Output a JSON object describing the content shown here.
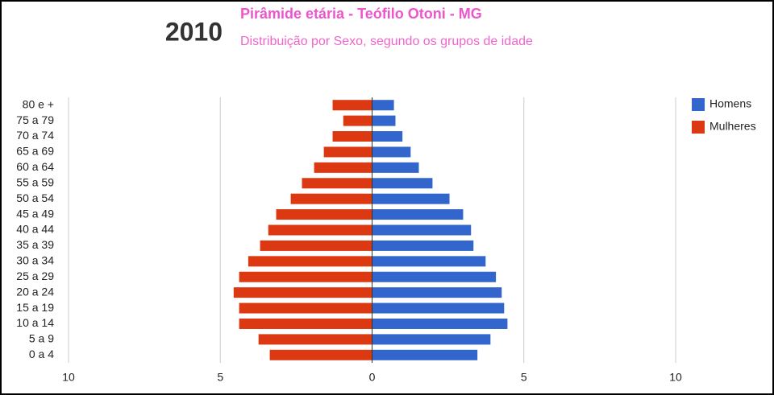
{
  "chart_data": {
    "type": "pyramid",
    "year": "2010",
    "title": "Pirâmide etária - Teófilo Otoni - MG",
    "subtitle": "Distribuição por Sexo, segundo os grupos de idade",
    "categories": [
      "80 e +",
      "75 a 79",
      "70 a 74",
      "65 a 69",
      "60 a 64",
      "55 a 59",
      "50 a 54",
      "45 a 49",
      "40 a 44",
      "35 a 39",
      "30 a 34",
      "25 a 29",
      "20 a 24",
      "15 a 19",
      "10 a 14",
      "5 a 9",
      "0 a 4"
    ],
    "series": [
      {
        "name": "Homens",
        "color": "#3366cc",
        "values": [
          0.72,
          0.77,
          1.0,
          1.27,
          1.54,
          1.99,
          2.55,
          3.0,
          3.26,
          3.34,
          3.74,
          4.08,
          4.27,
          4.35,
          4.46,
          3.9,
          3.47
        ]
      },
      {
        "name": "Mulheres",
        "color": "#dc3912",
        "values": [
          -1.3,
          -0.95,
          -1.3,
          -1.59,
          -1.91,
          -2.31,
          -2.68,
          -3.16,
          -3.42,
          -3.69,
          -4.08,
          -4.38,
          -4.56,
          -4.38,
          -4.38,
          -3.74,
          -3.37
        ]
      }
    ],
    "xlim": [
      -10,
      10
    ],
    "xticks": [
      {
        "value": -10,
        "label": "10"
      },
      {
        "value": -5,
        "label": "5"
      },
      0,
      5,
      10
    ],
    "grid": true,
    "legend": "right"
  }
}
